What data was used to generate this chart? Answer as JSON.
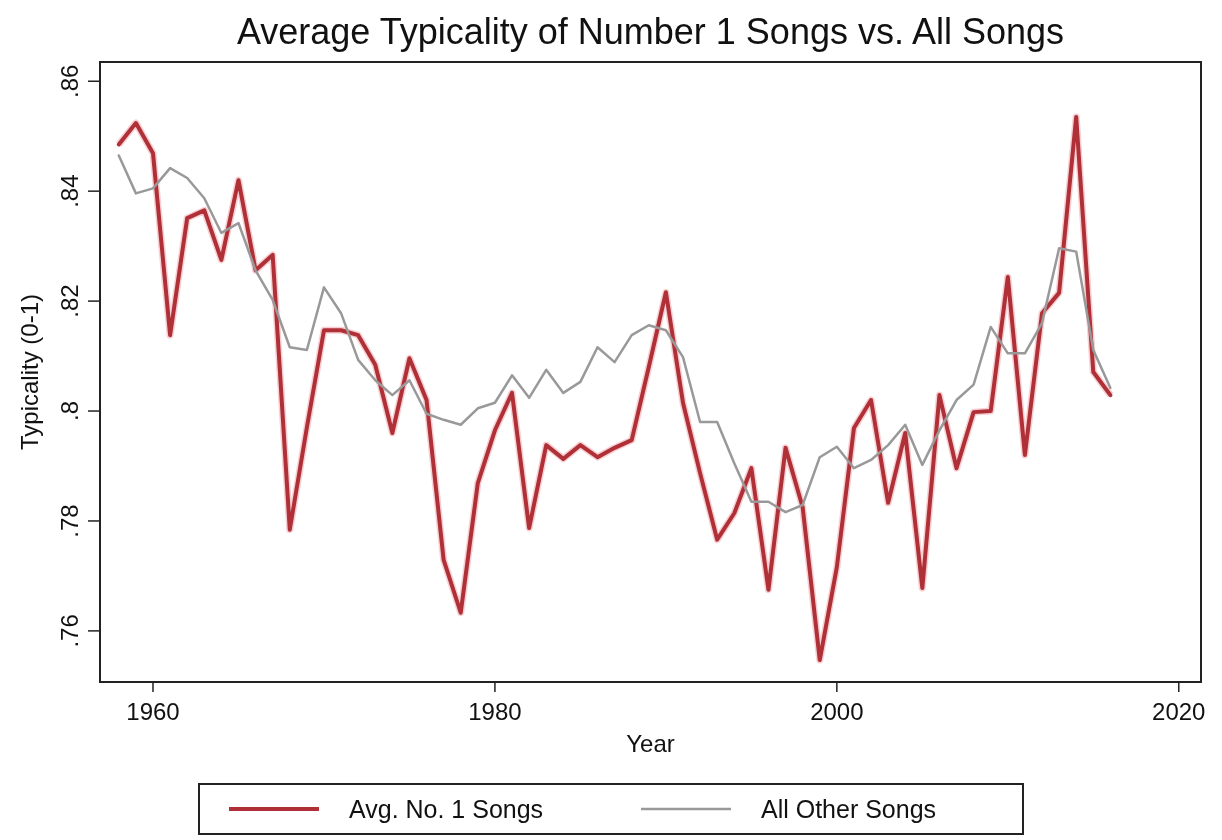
{
  "chart_data": {
    "type": "line",
    "title": "Average Typicality of Number 1 Songs vs. All Songs",
    "xlabel": "Year",
    "ylabel": "Typicality (0-1)",
    "x": [
      1958,
      1959,
      1960,
      1961,
      1962,
      1963,
      1964,
      1965,
      1966,
      1967,
      1968,
      1969,
      1970,
      1971,
      1972,
      1973,
      1974,
      1975,
      1976,
      1977,
      1978,
      1979,
      1980,
      1981,
      1982,
      1983,
      1984,
      1985,
      1986,
      1987,
      1988,
      1989,
      1990,
      1991,
      1992,
      1993,
      1994,
      1995,
      1996,
      1997,
      1998,
      1999,
      2000,
      2001,
      2002,
      2003,
      2004,
      2005,
      2006,
      2007,
      2008,
      2009,
      2010,
      2011,
      2012,
      2013,
      2014,
      2015,
      2016
    ],
    "series": [
      {
        "name": "Avg. No. 1 Songs",
        "color": "#b03038",
        "values": [
          0.8485,
          0.8524,
          0.8469,
          0.8138,
          0.8351,
          0.8365,
          0.8275,
          0.842,
          0.8256,
          0.8284,
          0.7784,
          0.797,
          0.8147,
          0.8147,
          0.8138,
          0.8084,
          0.796,
          0.8096,
          0.802,
          0.7729,
          0.7633,
          0.7869,
          0.7965,
          0.8033,
          0.7787,
          0.7938,
          0.7913,
          0.7938,
          0.7916,
          0.7933,
          0.7947,
          0.808,
          0.8216,
          0.8015,
          0.7887,
          0.7766,
          0.7814,
          0.7896,
          0.7675,
          0.7933,
          0.7825,
          0.7547,
          0.7716,
          0.7969,
          0.802,
          0.7833,
          0.796,
          0.7678,
          0.8029,
          0.7896,
          0.7998,
          0.8,
          0.8244,
          0.792,
          0.8178,
          0.8215,
          0.8535,
          0.8071,
          0.8029
        ]
      },
      {
        "name": "All Other Songs",
        "color": "#999999",
        "values": [
          0.8465,
          0.8396,
          0.8405,
          0.8442,
          0.8424,
          0.8387,
          0.8324,
          0.8342,
          0.8256,
          0.8202,
          0.8116,
          0.8111,
          0.8225,
          0.8178,
          0.8093,
          0.8056,
          0.8029,
          0.8056,
          0.7995,
          0.7984,
          0.7975,
          0.8005,
          0.8015,
          0.8065,
          0.8024,
          0.8075,
          0.8033,
          0.8053,
          0.8116,
          0.8089,
          0.8138,
          0.8156,
          0.8147,
          0.8098,
          0.798,
          0.798,
          0.7905,
          0.7835,
          0.7835,
          0.7816,
          0.7829,
          0.7916,
          0.7935,
          0.7896,
          0.7911,
          0.7938,
          0.7975,
          0.7902,
          0.7965,
          0.802,
          0.8048,
          0.8153,
          0.8105,
          0.8105,
          0.816,
          0.8296,
          0.829,
          0.8111,
          0.8042
        ]
      }
    ],
    "xlim": [
      1956.9,
      2021.3
    ],
    "xticks": [
      1960,
      1980,
      2000,
      2020
    ],
    "ylim": [
      0.7507,
      0.8635
    ],
    "yticks": [
      {
        "value": 0.76,
        "label": ".76"
      },
      {
        "value": 0.78,
        "label": ".78"
      },
      {
        "value": 0.8,
        "label": ".8"
      },
      {
        "value": 0.82,
        "label": ".82"
      },
      {
        "value": 0.84,
        "label": ".84"
      },
      {
        "value": 0.86,
        "label": ".86"
      }
    ],
    "legend": "bottom"
  }
}
